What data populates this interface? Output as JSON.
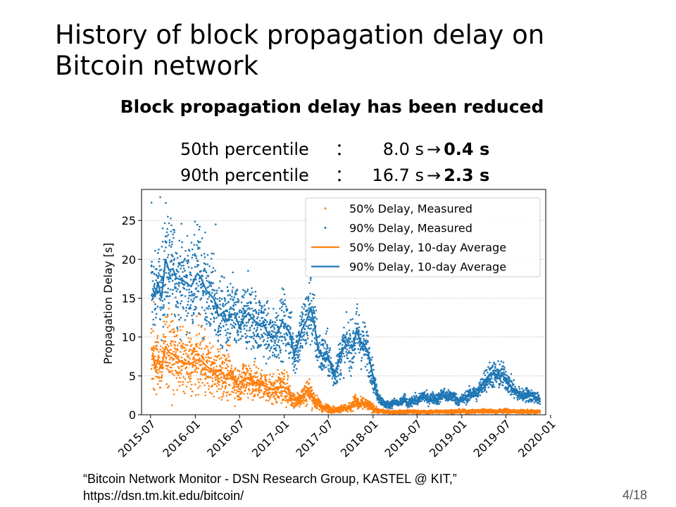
{
  "slide": {
    "title": "History of block propagation delay on Bitcoin network",
    "subtitle": "Block propagation delay has been reduced",
    "stats": [
      {
        "label": "50th percentile",
        "sep": "：",
        "from": "8.0 s",
        "arrow": "→",
        "to": "0.4 s"
      },
      {
        "label": "90th percentile",
        "sep": "：",
        "from": "16.7 s",
        "arrow": "→",
        "to": "2.3 s"
      }
    ],
    "citation_line1": "“Bitcoin Network Monitor - DSN Research Group, KASTEL @ KIT,”",
    "citation_line2": "https://dsn.tm.kit.edu/bitcoin/",
    "page_number": "4/18"
  },
  "chart_data": {
    "type": "scatter",
    "ylabel": "Propagation Delay [s]",
    "xlabel": "",
    "xlim": [
      "2015-05-25",
      "2019-12-12"
    ],
    "ylim": [
      0,
      29
    ],
    "x_ticks": [
      "2015-07",
      "2016-01",
      "2016-07",
      "2017-01",
      "2017-07",
      "2018-01",
      "2018-07",
      "2019-01",
      "2019-07",
      "2020-01"
    ],
    "y_ticks": [
      0,
      5,
      10,
      15,
      20,
      25
    ],
    "grid": true,
    "legend_position": "top-right",
    "colors": {
      "p50": "#ff7f0e",
      "p90": "#1f77b4"
    },
    "series": [
      {
        "name": "90% Delay, 10-day Average",
        "kind": "line",
        "color": "#1f77b4",
        "points": [
          [
            "2015-07-10",
            16.3
          ],
          [
            "2015-07-20",
            15.2
          ],
          [
            "2015-08-01",
            17.0
          ],
          [
            "2015-08-15",
            15.0
          ],
          [
            "2015-09-01",
            20.0
          ],
          [
            "2015-09-15",
            18.6
          ],
          [
            "2015-10-01",
            18.8
          ],
          [
            "2015-10-15",
            17.6
          ],
          [
            "2015-11-15",
            17.2
          ],
          [
            "2015-12-15",
            16.5
          ],
          [
            "2016-01-10",
            18.2
          ],
          [
            "2016-01-25",
            17.6
          ],
          [
            "2016-02-15",
            16.0
          ],
          [
            "2016-03-05",
            15.4
          ],
          [
            "2016-03-20",
            14.8
          ],
          [
            "2016-04-05",
            12.7
          ],
          [
            "2016-04-25",
            13.2
          ],
          [
            "2016-05-10",
            12.0
          ],
          [
            "2016-05-25",
            12.8
          ],
          [
            "2016-06-10",
            13.0
          ],
          [
            "2016-07-01",
            11.3
          ],
          [
            "2016-07-20",
            12.5
          ],
          [
            "2016-08-05",
            13.0
          ],
          [
            "2016-08-25",
            12.3
          ],
          [
            "2016-09-15",
            11.5
          ],
          [
            "2016-10-05",
            11.8
          ],
          [
            "2016-10-25",
            10.5
          ],
          [
            "2016-11-15",
            9.8
          ],
          [
            "2016-12-05",
            10.6
          ],
          [
            "2016-12-25",
            12.0
          ],
          [
            "2017-01-10",
            11.2
          ],
          [
            "2017-01-25",
            10.5
          ],
          [
            "2017-02-10",
            7.8
          ],
          [
            "2017-02-25",
            9.0
          ],
          [
            "2017-03-15",
            11.0
          ],
          [
            "2017-04-01",
            12.0
          ],
          [
            "2017-04-20",
            13.8
          ],
          [
            "2017-05-05",
            11.5
          ],
          [
            "2017-05-20",
            8.5
          ],
          [
            "2017-06-05",
            7.5
          ],
          [
            "2017-06-25",
            8.0
          ],
          [
            "2017-07-10",
            6.5
          ],
          [
            "2017-07-25",
            5.0
          ],
          [
            "2017-08-10",
            6.6
          ],
          [
            "2017-09-01",
            8.5
          ],
          [
            "2017-09-20",
            9.0
          ],
          [
            "2017-10-10",
            8.7
          ],
          [
            "2017-10-25",
            10.8
          ],
          [
            "2017-11-10",
            9.5
          ],
          [
            "2017-11-25",
            9.0
          ],
          [
            "2017-12-10",
            8.2
          ],
          [
            "2017-12-25",
            6.0
          ],
          [
            "2018-01-10",
            3.5
          ],
          [
            "2018-01-25",
            2.2
          ],
          [
            "2018-02-15",
            1.4
          ],
          [
            "2018-03-10",
            1.3
          ],
          [
            "2018-04-01",
            1.6
          ],
          [
            "2018-04-20",
            1.4
          ],
          [
            "2018-05-10",
            2.1
          ],
          [
            "2018-05-25",
            1.3
          ],
          [
            "2018-06-15",
            2.0
          ],
          [
            "2018-07-05",
            1.8
          ],
          [
            "2018-07-25",
            2.5
          ],
          [
            "2018-08-15",
            2.0
          ],
          [
            "2018-09-05",
            2.2
          ],
          [
            "2018-09-25",
            2.0
          ],
          [
            "2018-10-15",
            2.7
          ],
          [
            "2018-11-05",
            2.3
          ],
          [
            "2018-11-25",
            2.5
          ],
          [
            "2018-12-15",
            1.8
          ],
          [
            "2019-01-05",
            2.0
          ],
          [
            "2019-01-25",
            2.4
          ],
          [
            "2019-02-15",
            2.8
          ],
          [
            "2019-03-05",
            2.7
          ],
          [
            "2019-03-25",
            3.8
          ],
          [
            "2019-04-15",
            4.8
          ],
          [
            "2019-05-05",
            5.2
          ],
          [
            "2019-05-25",
            5.0
          ],
          [
            "2019-06-15",
            5.1
          ],
          [
            "2019-07-05",
            4.5
          ],
          [
            "2019-07-25",
            3.5
          ],
          [
            "2019-08-15",
            2.8
          ],
          [
            "2019-09-05",
            2.5
          ],
          [
            "2019-09-25",
            2.6
          ],
          [
            "2019-10-15",
            2.4
          ],
          [
            "2019-11-01",
            2.3
          ],
          [
            "2019-11-15",
            1.9
          ]
        ]
      },
      {
        "name": "50% Delay, 10-day Average",
        "kind": "line",
        "color": "#ff7f0e",
        "points": [
          [
            "2015-07-10",
            8.0
          ],
          [
            "2015-07-20",
            6.0
          ],
          [
            "2015-08-01",
            7.2
          ],
          [
            "2015-08-15",
            6.0
          ],
          [
            "2015-09-01",
            8.8
          ],
          [
            "2015-09-15",
            8.0
          ],
          [
            "2015-10-01",
            7.8
          ],
          [
            "2015-10-20",
            7.2
          ],
          [
            "2015-11-15",
            6.6
          ],
          [
            "2015-12-15",
            6.6
          ],
          [
            "2016-01-10",
            7.1
          ],
          [
            "2016-01-25",
            7.0
          ],
          [
            "2016-02-15",
            6.3
          ],
          [
            "2016-03-05",
            5.8
          ],
          [
            "2016-03-20",
            5.3
          ],
          [
            "2016-04-10",
            5.8
          ],
          [
            "2016-05-01",
            5.0
          ],
          [
            "2016-05-20",
            5.2
          ],
          [
            "2016-06-05",
            4.6
          ],
          [
            "2016-06-25",
            3.8
          ],
          [
            "2016-07-15",
            4.5
          ],
          [
            "2016-08-05",
            4.8
          ],
          [
            "2016-08-25",
            4.2
          ],
          [
            "2016-09-15",
            4.0
          ],
          [
            "2016-10-05",
            3.8
          ],
          [
            "2016-10-25",
            3.5
          ],
          [
            "2016-11-15",
            3.2
          ],
          [
            "2016-12-05",
            3.4
          ],
          [
            "2016-12-25",
            3.6
          ],
          [
            "2017-01-15",
            3.3
          ],
          [
            "2017-02-01",
            2.0
          ],
          [
            "2017-02-20",
            1.8
          ],
          [
            "2017-03-10",
            2.3
          ],
          [
            "2017-03-25",
            2.6
          ],
          [
            "2017-04-10",
            3.2
          ],
          [
            "2017-04-25",
            2.5
          ],
          [
            "2017-05-10",
            1.6
          ],
          [
            "2017-05-25",
            1.4
          ],
          [
            "2017-06-10",
            0.8
          ],
          [
            "2017-06-25",
            0.9
          ],
          [
            "2017-07-15",
            0.7
          ],
          [
            "2017-08-05",
            0.6
          ],
          [
            "2017-08-25",
            0.9
          ],
          [
            "2017-09-15",
            0.8
          ],
          [
            "2017-10-01",
            1.0
          ],
          [
            "2017-10-20",
            1.8
          ],
          [
            "2017-11-05",
            1.2
          ],
          [
            "2017-11-20",
            1.5
          ],
          [
            "2017-12-10",
            1.2
          ],
          [
            "2018-01-01",
            0.9
          ],
          [
            "2018-01-20",
            0.5
          ],
          [
            "2018-02-15",
            0.4
          ],
          [
            "2018-04-01",
            0.35
          ],
          [
            "2018-06-01",
            0.4
          ],
          [
            "2018-08-01",
            0.35
          ],
          [
            "2018-10-01",
            0.4
          ],
          [
            "2018-12-01",
            0.45
          ],
          [
            "2019-02-01",
            0.4
          ],
          [
            "2019-04-01",
            0.5
          ],
          [
            "2019-05-15",
            0.45
          ],
          [
            "2019-07-01",
            0.5
          ],
          [
            "2019-08-15",
            0.4
          ],
          [
            "2019-10-01",
            0.4
          ],
          [
            "2019-11-15",
            0.4
          ]
        ]
      },
      {
        "name": "90% Delay, Measured",
        "kind": "points",
        "color": "#1f77b4",
        "spread": 0.17,
        "outliers": [
          [
            "2015-07-05",
            27.3
          ],
          [
            "2015-08-10",
            28.0
          ],
          [
            "2015-09-10",
            25.5
          ],
          [
            "2015-08-20",
            24.0
          ],
          [
            "2016-03-25",
            24.5
          ]
        ]
      },
      {
        "name": "50% Delay, Measured",
        "kind": "points",
        "color": "#ff7f0e",
        "spread": 0.28,
        "outliers": [
          [
            "2015-07-15",
            14.5
          ],
          [
            "2015-08-25",
            12.0
          ],
          [
            "2016-02-10",
            11.0
          ]
        ]
      }
    ]
  }
}
